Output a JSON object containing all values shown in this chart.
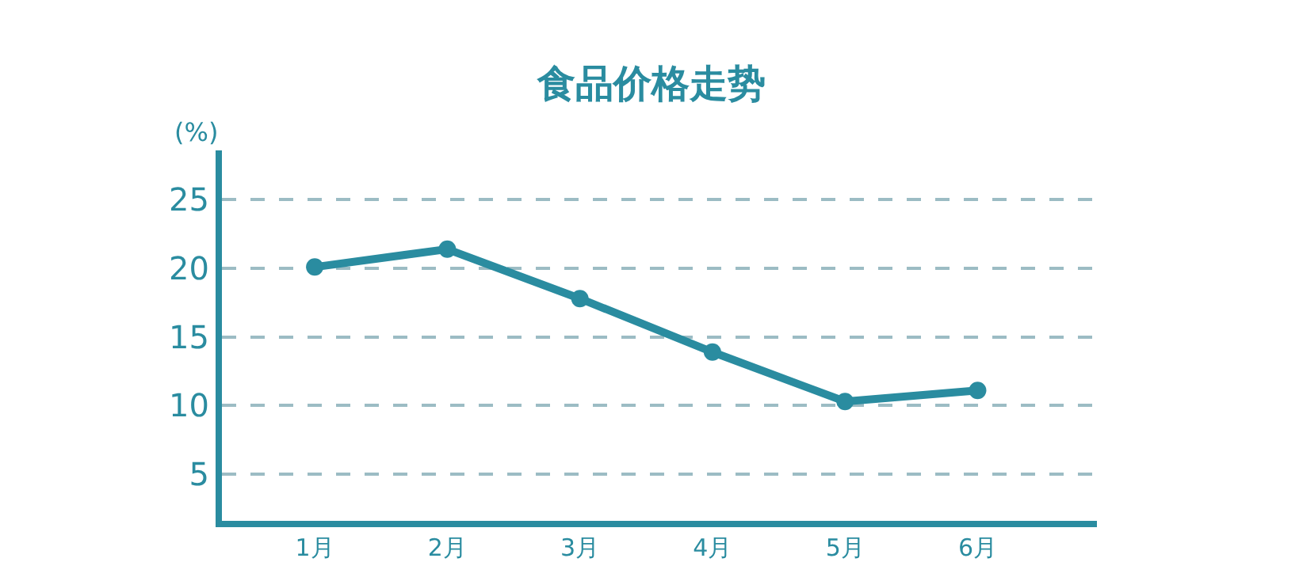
{
  "chart_data": {
    "type": "line",
    "title": "食品价格走势",
    "ylabel": "(%)",
    "categories": [
      "1月",
      "2月",
      "3月",
      "4月",
      "5月",
      "6月"
    ],
    "series": [
      {
        "color": "#2a8ca0",
        "values": [
          20.1,
          21.4,
          17.8,
          13.9,
          10.3,
          11.1
        ]
      }
    ],
    "ylim": [
      1.6,
      28.6
    ],
    "yticks": [
      5,
      10,
      15,
      20,
      25
    ],
    "grid": "y",
    "legend": false,
    "marker": "circle",
    "line_style": "solid"
  }
}
